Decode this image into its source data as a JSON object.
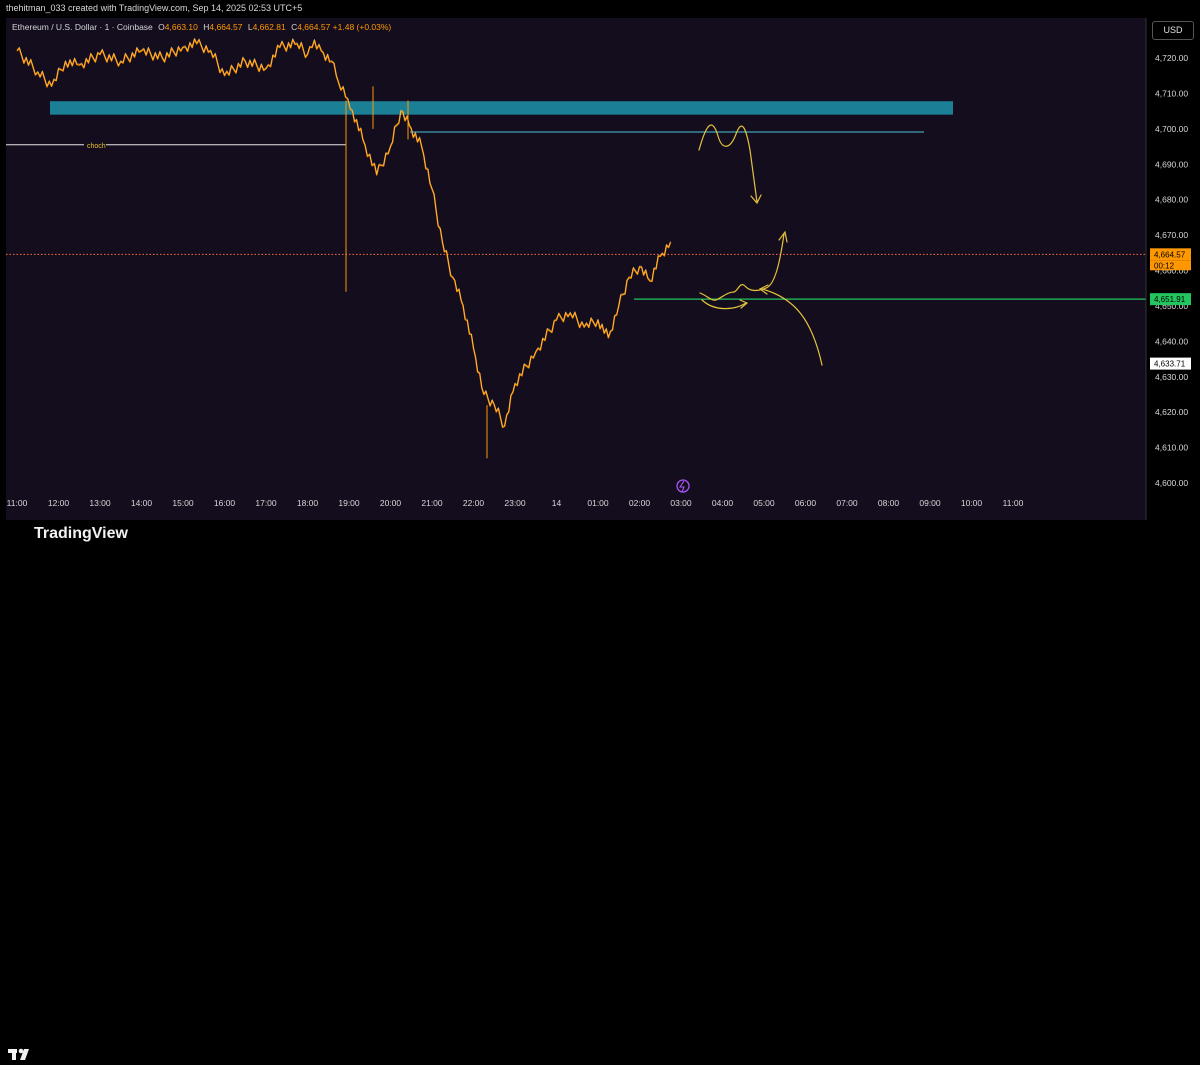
{
  "header": {
    "credit": "thehitman_033 created with TradingView.com, Sep 14, 2025 02:53 UTC+5"
  },
  "legend": {
    "symbol": "Ethereum / U.S. Dollar · 1 · Coinbase",
    "open_label": "O",
    "open": "4,663.10",
    "high_label": "H",
    "high": "4,664.57",
    "low_label": "L",
    "low": "4,662.81",
    "close_label": "C",
    "close": "4,664.57",
    "change": "+1.48 (+0.03%)"
  },
  "currency": "USD",
  "footer": {
    "brand": "TradingView"
  },
  "colors": {
    "background": "#140d1e",
    "candle": "#ff9800",
    "zone": "#1b7f96",
    "choch_line": "#e6e6e6",
    "choch_label": "#e6c229",
    "support_line": "#22c55e",
    "resistance_line": "#4fc3d9",
    "drawing": "#e3c33c",
    "price_line": "#ff7043"
  },
  "chart_data": {
    "type": "line",
    "title": "Ethereum / U.S. Dollar · 1 · Coinbase",
    "xlabel": "",
    "ylabel": "",
    "x_ticks": [
      "11:00",
      "12:00",
      "13:00",
      "14:00",
      "15:00",
      "16:00",
      "17:00",
      "18:00",
      "19:00",
      "20:00",
      "21:00",
      "22:00",
      "23:00",
      "14",
      "01:00",
      "02:00",
      "03:00",
      "04:00",
      "05:00",
      "06:00",
      "07:00",
      "08:00",
      "09:00",
      "10:00",
      "11:00"
    ],
    "y_ticks": [
      "4,720.00",
      "4,710.00",
      "4,700.00",
      "4,690.00",
      "4,680.00",
      "4,670.00",
      "4,660.00",
      "4,650.00",
      "4,640.00",
      "4,630.00",
      "4,620.00",
      "4,610.00",
      "4,600.00"
    ],
    "ylim": [
      4599,
      4727
    ],
    "series": [
      {
        "x": [
          "11:00",
          "11:30",
          "11:50",
          "12:10",
          "12:30",
          "13:00",
          "13:30",
          "14:00",
          "14:30",
          "15:00",
          "15:20",
          "15:40",
          "16:00",
          "16:30",
          "17:00",
          "17:20",
          "17:45",
          "18:00",
          "18:10",
          "18:20",
          "18:35",
          "18:45",
          "18:55",
          "19:05",
          "19:20",
          "19:40",
          "20:00",
          "20:15",
          "20:30",
          "20:45",
          "21:00",
          "21:15",
          "21:30",
          "21:45",
          "22:00",
          "22:15",
          "22:30",
          "22:45",
          "23:00",
          "23:30",
          "00:00",
          "00:20",
          "00:40",
          "01:00",
          "01:15",
          "01:30",
          "01:45",
          "02:00",
          "02:15",
          "02:30",
          "02:45"
        ],
        "values": [
          4722,
          4716,
          4712,
          4719,
          4718,
          4721,
          4719,
          4722,
          4720,
          4723,
          4724,
          4722,
          4715,
          4719,
          4717,
          4723,
          4724,
          4721,
          4725,
          4722,
          4719,
          4713,
          4709,
          4705,
          4697,
          4687,
          4695,
          4705,
          4700,
          4695,
          4683,
          4668,
          4658,
          4650,
          4638,
          4625,
          4622,
          4616,
          4628,
          4637,
          4646,
          4648,
          4644,
          4646,
          4641,
          4650,
          4658,
          4661,
          4657,
          4664,
          4668
        ]
      }
    ],
    "price_labels": [
      "4,664.57",
      "00:12",
      "4,651.91",
      "4,633.71"
    ],
    "annotations": [
      "choch"
    ]
  }
}
